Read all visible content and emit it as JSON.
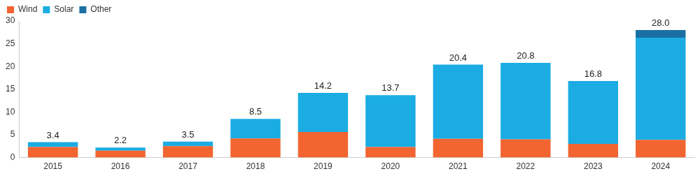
{
  "chart_data": {
    "type": "bar",
    "categories": [
      "2015",
      "2016",
      "2017",
      "2018",
      "2019",
      "2020",
      "2021",
      "2022",
      "2023",
      "2024"
    ],
    "series": [
      {
        "name": "Wind",
        "color": "#f26430",
        "values": [
          2.3,
          1.5,
          2.5,
          4.2,
          5.6,
          2.3,
          4.1,
          4.0,
          3.0,
          3.9
        ]
      },
      {
        "name": "Solar",
        "color": "#1aace2",
        "values": [
          1.1,
          0.7,
          1.0,
          4.3,
          8.6,
          11.4,
          16.3,
          16.8,
          13.8,
          22.4
        ]
      },
      {
        "name": "Other",
        "color": "#1b6fa3",
        "values": [
          0,
          0,
          0,
          0,
          0,
          0,
          0,
          0,
          0,
          1.7
        ]
      }
    ],
    "totals": [
      3.4,
      2.2,
      3.5,
      8.5,
      14.2,
      13.7,
      20.4,
      20.8,
      16.8,
      28.0
    ],
    "total_labels": [
      "3.4",
      "2.2",
      "3.5",
      "8.5",
      "14.2",
      "13.7",
      "20.4",
      "20.8",
      "16.8",
      "28.0"
    ],
    "ylim": [
      0,
      30
    ],
    "yticks": [
      0,
      5,
      10,
      15,
      20,
      25,
      30
    ],
    "stacked": true,
    "grid": false,
    "legend": "top-left"
  }
}
